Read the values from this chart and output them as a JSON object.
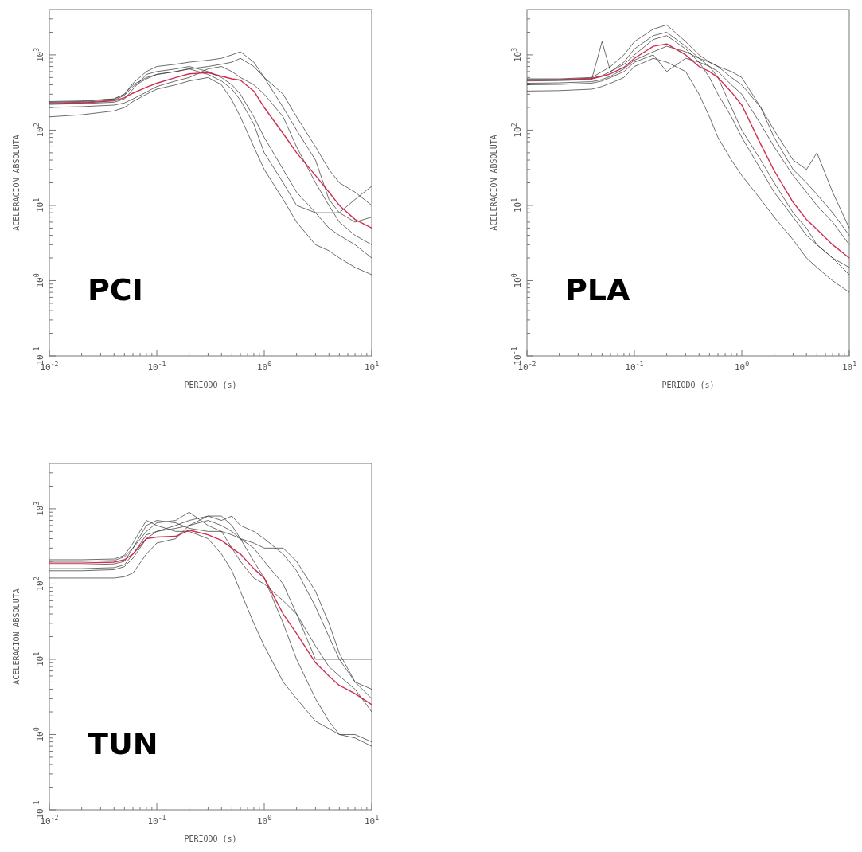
{
  "chart_data": [
    {
      "type": "line",
      "log": "xy",
      "xlabel": "PERIODO (s)",
      "ylabel": "ACELERACION ABSOLUTA",
      "annotations": [
        "PCI"
      ],
      "x": [
        0.01,
        0.02,
        0.04,
        0.05,
        0.06,
        0.08,
        0.1,
        0.15,
        0.2,
        0.3,
        0.4,
        0.5,
        0.6,
        0.8,
        1,
        1.5,
        2,
        3,
        4,
        5,
        7,
        10
      ],
      "xlim": [
        0.01,
        10
      ],
      "ylim": [
        0.1,
        4000
      ],
      "xticks": [
        {
          "value": 0.01,
          "label": "10$^{-2}$"
        },
        {
          "value": 0.1,
          "label": "10$^{-1}$"
        },
        {
          "value": 1,
          "label": "10$^{0}$"
        },
        {
          "value": 10,
          "label": "10$^{1}$"
        }
      ],
      "yticks": [
        {
          "value": 0.1,
          "label": "10$^{-1}$"
        },
        {
          "value": 1,
          "label": "10$^{0}$"
        },
        {
          "value": 10,
          "label": "10$^{1}$"
        },
        {
          "value": 100,
          "label": "10$^{2}$"
        },
        {
          "value": 1000,
          "label": "10$^{3}$"
        }
      ],
      "series": [
        {
          "color": "#333333",
          "values": [
            240,
            245,
            260,
            300,
            420,
            600,
            700,
            750,
            800,
            850,
            900,
            1000,
            1100,
            800,
            500,
            300,
            150,
            60,
            30,
            20,
            15,
            10
          ]
        },
        {
          "color": "#333333",
          "values": [
            150,
            160,
            180,
            200,
            240,
            300,
            350,
            400,
            450,
            500,
            400,
            250,
            150,
            60,
            30,
            12,
            6,
            3,
            2.5,
            2,
            1.5,
            1.2
          ]
        },
        {
          "color": "#333333",
          "values": [
            220,
            225,
            235,
            260,
            350,
            550,
            600,
            650,
            700,
            600,
            500,
            400,
            300,
            150,
            80,
            30,
            15,
            8,
            5,
            4,
            3,
            2
          ]
        },
        {
          "color": "#333333",
          "values": [
            200,
            205,
            215,
            230,
            260,
            320,
            380,
            450,
            500,
            650,
            700,
            600,
            500,
            400,
            300,
            150,
            60,
            20,
            10,
            6,
            4,
            3
          ]
        },
        {
          "color": "#333333",
          "values": [
            230,
            235,
            250,
            290,
            380,
            480,
            550,
            600,
            650,
            700,
            750,
            800,
            900,
            700,
            500,
            200,
            100,
            40,
            12,
            8,
            6,
            7
          ]
        },
        {
          "color": "#333333",
          "values": [
            235,
            240,
            260,
            300,
            400,
            500,
            550,
            600,
            650,
            550,
            450,
            350,
            250,
            120,
            50,
            20,
            10,
            8,
            8,
            8,
            12,
            18
          ]
        },
        {
          "color": "#c8183c",
          "values": [
            225,
            230,
            245,
            270,
            310,
            370,
            420,
            500,
            560,
            580,
            520,
            480,
            460,
            330,
            200,
            90,
            50,
            25,
            15,
            10,
            6.5,
            5
          ]
        }
      ]
    },
    {
      "type": "line",
      "log": "xy",
      "xlabel": "PERIODO (s)",
      "ylabel": "ACELERACION ABSOLUTA",
      "annotations": [
        "PLA"
      ],
      "x": [
        0.01,
        0.02,
        0.04,
        0.05,
        0.06,
        0.08,
        0.1,
        0.15,
        0.2,
        0.3,
        0.4,
        0.5,
        0.6,
        0.8,
        1,
        1.5,
        2,
        3,
        4,
        5,
        7,
        10
      ],
      "xlim": [
        0.01,
        10
      ],
      "ylim": [
        0.1,
        4000
      ],
      "xticks": [
        {
          "value": 0.01,
          "label": "10$^{-2}$"
        },
        {
          "value": 0.1,
          "label": "10$^{-1}$"
        },
        {
          "value": 1,
          "label": "10$^{0}$"
        },
        {
          "value": 10,
          "label": "10$^{1}$"
        }
      ],
      "yticks": [
        {
          "value": 0.1,
          "label": "10$^{-1}$"
        },
        {
          "value": 1,
          "label": "10$^{0}$"
        },
        {
          "value": 10,
          "label": "10$^{1}$"
        },
        {
          "value": 100,
          "label": "10$^{2}$"
        },
        {
          "value": 1000,
          "label": "10$^{3}$"
        }
      ],
      "series": [
        {
          "color": "#333333",
          "values": [
            480,
            480,
            500,
            600,
            700,
            1000,
            1500,
            2200,
            2500,
            1500,
            1000,
            800,
            700,
            600,
            500,
            200,
            80,
            30,
            20,
            14,
            8,
            4
          ]
        },
        {
          "color": "#333333",
          "values": [
            330,
            335,
            350,
            380,
            420,
            500,
            700,
            900,
            800,
            600,
            300,
            150,
            80,
            40,
            25,
            12,
            7,
            3.5,
            2,
            1.5,
            1,
            0.7
          ]
        },
        {
          "color": "#333333",
          "values": [
            450,
            455,
            470,
            1500,
            600,
            800,
            1200,
            1800,
            2000,
            1300,
            900,
            700,
            500,
            200,
            100,
            40,
            20,
            8,
            5,
            3,
            2,
            1.2
          ]
        },
        {
          "color": "#333333",
          "values": [
            400,
            405,
            420,
            450,
            500,
            600,
            800,
            1000,
            600,
            900,
            800,
            700,
            600,
            400,
            300,
            120,
            60,
            25,
            15,
            10,
            6,
            3
          ]
        },
        {
          "color": "#333333",
          "values": [
            470,
            470,
            490,
            530,
            600,
            750,
            1000,
            1600,
            1800,
            1200,
            800,
            500,
            300,
            150,
            80,
            30,
            15,
            7,
            4,
            3,
            2,
            1.5
          ]
        },
        {
          "color": "#333333",
          "values": [
            420,
            425,
            440,
            470,
            520,
            650,
            850,
            1100,
            1300,
            1100,
            900,
            800,
            700,
            500,
            400,
            200,
            100,
            40,
            30,
            50,
            15,
            5
          ]
        },
        {
          "color": "#c8183c",
          "values": [
            460,
            465,
            480,
            520,
            560,
            680,
            900,
            1300,
            1400,
            1000,
            700,
            600,
            500,
            320,
            215,
            65,
            29,
            11,
            6.5,
            4.8,
            3,
            2
          ]
        }
      ]
    },
    {
      "type": "line",
      "log": "xy",
      "xlabel": "PERIODO (s)",
      "ylabel": "ACELERACION ABSOLUTA",
      "annotations": [
        "TUN"
      ],
      "x": [
        0.01,
        0.02,
        0.04,
        0.05,
        0.06,
        0.08,
        0.1,
        0.15,
        0.2,
        0.3,
        0.4,
        0.5,
        0.6,
        0.8,
        1,
        1.5,
        2,
        3,
        4,
        5,
        7,
        10
      ],
      "xlim": [
        0.01,
        10
      ],
      "ylim": [
        0.1,
        4000
      ],
      "xticks": [
        {
          "value": 0.01,
          "label": "10$^{-2}$"
        },
        {
          "value": 0.1,
          "label": "10$^{-1}$"
        },
        {
          "value": 1,
          "label": "10$^{0}$"
        },
        {
          "value": 10,
          "label": "10$^{1}$"
        }
      ],
      "yticks": [
        {
          "value": 0.1,
          "label": "10$^{-1}$"
        },
        {
          "value": 1,
          "label": "10$^{0}$"
        },
        {
          "value": 10,
          "label": "10$^{1}$"
        },
        {
          "value": 100,
          "label": "10$^{2}$"
        },
        {
          "value": 1000,
          "label": "10$^{3}$"
        }
      ],
      "series": [
        {
          "color": "#333333",
          "values": [
            120,
            120,
            120,
            125,
            140,
            250,
            350,
            400,
            600,
            800,
            700,
            800,
            600,
            500,
            400,
            250,
            150,
            50,
            20,
            10,
            5,
            3
          ]
        },
        {
          "color": "#333333",
          "values": [
            210,
            210,
            215,
            240,
            350,
            700,
            600,
            500,
            500,
            400,
            250,
            150,
            80,
            30,
            15,
            5,
            3,
            1.5,
            1.2,
            1,
            0.9,
            0.7
          ]
        },
        {
          "color": "#333333",
          "values": [
            200,
            200,
            205,
            230,
            300,
            500,
            650,
            700,
            900,
            600,
            500,
            300,
            200,
            120,
            100,
            60,
            40,
            15,
            8,
            6,
            4,
            2
          ]
        },
        {
          "color": "#333333",
          "values": [
            160,
            160,
            165,
            180,
            250,
            450,
            500,
            550,
            600,
            700,
            600,
            500,
            400,
            300,
            200,
            100,
            40,
            10,
            10,
            10,
            10,
            10
          ]
        },
        {
          "color": "#333333",
          "values": [
            150,
            150,
            155,
            170,
            220,
            400,
            500,
            600,
            700,
            800,
            800,
            600,
            400,
            200,
            120,
            30,
            10,
            3,
            1.5,
            1,
            1,
            0.8
          ]
        },
        {
          "color": "#333333",
          "values": [
            180,
            180,
            185,
            200,
            300,
            600,
            700,
            650,
            550,
            500,
            500,
            450,
            400,
            350,
            300,
            300,
            200,
            80,
            30,
            12,
            5,
            4
          ]
        },
        {
          "color": "#c8183c",
          "values": [
            190,
            190,
            195,
            210,
            250,
            400,
            420,
            430,
            520,
            450,
            380,
            300,
            250,
            160,
            120,
            40,
            22,
            9,
            6,
            4.5,
            3.5,
            2.5
          ]
        }
      ]
    }
  ]
}
